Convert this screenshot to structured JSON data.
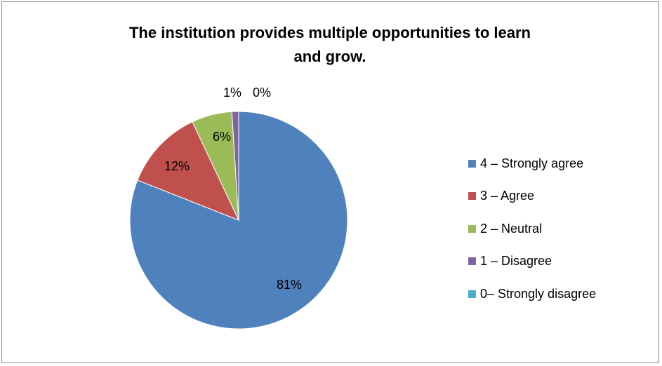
{
  "chart_data": {
    "type": "pie",
    "title": "The institution provides multiple opportunities to learn\nand grow.",
    "slices": [
      {
        "label": "4 – Strongly agree",
        "value": 81,
        "display": "81%",
        "color": "#4F81BD"
      },
      {
        "label": "3 – Agree",
        "value": 12,
        "display": "12%",
        "color": "#C0504D"
      },
      {
        "label": "2 – Neutral",
        "value": 6,
        "display": "6%",
        "color": "#9BBB59"
      },
      {
        "label": "1 – Disagree",
        "value": 1,
        "display": "1%",
        "color": "#8064A2"
      },
      {
        "label": "0– Strongly disagree",
        "value": 0,
        "display": "0%",
        "color": "#4BACC6"
      }
    ],
    "legend_position": "right"
  }
}
